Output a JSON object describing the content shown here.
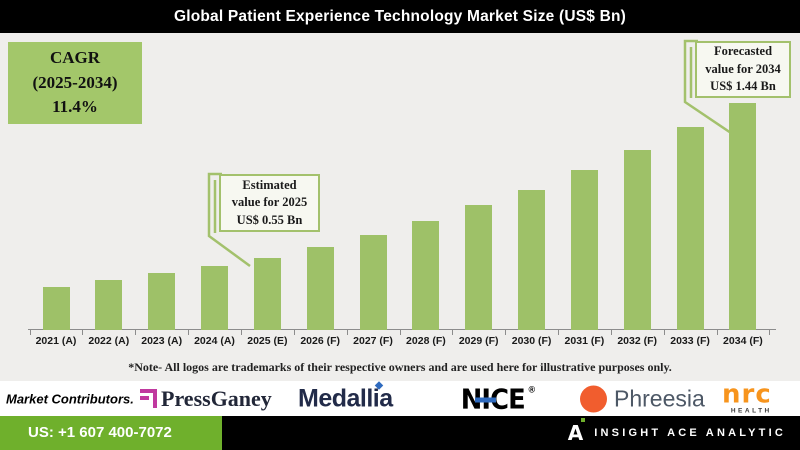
{
  "header": {
    "title": "Global Patient Experience Technology Market Size (US$ Bn)"
  },
  "cagr_box": {
    "line1": "CAGR",
    "line2": "(2025-2034)",
    "line3": "11.4%"
  },
  "callouts": {
    "estimated": {
      "line1": "Estimated",
      "line2": "value for 2025",
      "line3": "US$ 0.55 Bn"
    },
    "forecasted": {
      "line1": "Forecasted",
      "line2": "value for 2034",
      "line3": "US$ 1.44 Bn"
    }
  },
  "chart_data": {
    "type": "bar",
    "title": "Global Patient Experience Technology Market Size (US$ Bn)",
    "unit": "US$ Bn",
    "categories": [
      "2021 (A)",
      "2022 (A)",
      "2023 (A)",
      "2024 (A)",
      "2025 (E)",
      "2026 (F)",
      "2027 (F)",
      "2028 (F)",
      "2029 (F)",
      "2030 (F)",
      "2031 (F)",
      "2032 (F)",
      "2033 (F)",
      "2034 (F)"
    ],
    "values": [
      0.38,
      0.42,
      0.46,
      0.5,
      0.55,
      0.61,
      0.68,
      0.76,
      0.85,
      0.94,
      1.05,
      1.17,
      1.3,
      1.44
    ],
    "cagr_2025_2034": "11.4%",
    "annotations": [
      {
        "year": "2025 (E)",
        "label": "Estimated value for 2025 US$ 0.55 Bn"
      },
      {
        "year": "2034 (F)",
        "label": "Forecasted value for 2034 US$ 1.44 Bn"
      }
    ],
    "bar_color": "#9ec168",
    "grid": "off",
    "legend": "none"
  },
  "note": "*Note- All logos are trademarks of their respective owners and are used here for illustrative purposes only.",
  "contributors": {
    "label": "Market Contributors.",
    "pressganey": "PressGaney",
    "medallia": "Medallia",
    "nice": "NICE",
    "nice_reg": "®",
    "phreesia": "Phreesia",
    "nrc": "nrc",
    "nrc_sub": "HEALTH"
  },
  "footer": {
    "phone": "US: +1 607 400-7072",
    "brand_initial": "A",
    "brand": "INSIGHT ACE ANALYTIC"
  },
  "colors": {
    "bar_green": "#9ec168",
    "cagr_box_green": "#a3c76a",
    "callout_border_green": "#a3c16c",
    "footer_green": "#6fb02c",
    "pressganey_magenta": "#c0399f",
    "medallia_navy": "#222b49",
    "nice_blue": "#2f6bbf",
    "phreesia_orange": "#f15d2e",
    "nrc_orange": "#f7941d",
    "title_bg": "#000000",
    "chart_bg": "#efeeec"
  }
}
